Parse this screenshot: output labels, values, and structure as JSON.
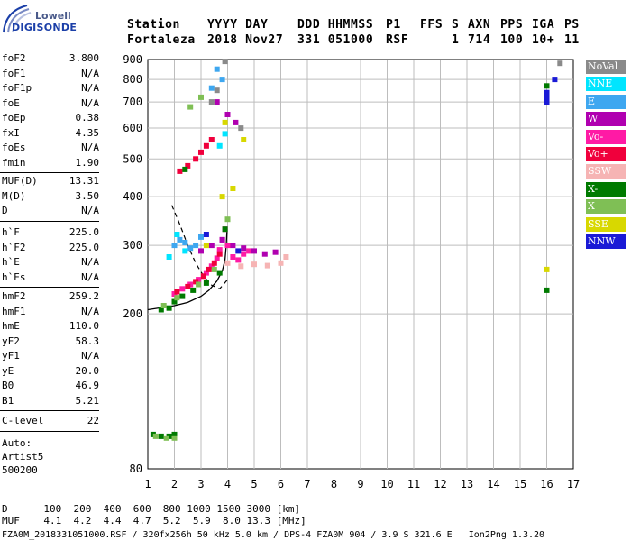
{
  "logo": {
    "line1": "Lowell",
    "line2": "DIGISONDE"
  },
  "header": {
    "labels": [
      "Station",
      "YYYY DAY",
      "DDD HHMMSS",
      "P1",
      "FFS",
      "S",
      "AXN",
      "PPS",
      "IGA",
      "PS"
    ],
    "values": [
      "Fortaleza",
      "2018 Nov27",
      "331 051000",
      "RSF",
      "",
      "1",
      "714",
      "100",
      "10+",
      "11"
    ]
  },
  "params_group1": [
    {
      "name": "foF2",
      "value": "3.800"
    },
    {
      "name": "foF1",
      "value": "N/A"
    },
    {
      "name": "foF1p",
      "value": "N/A"
    },
    {
      "name": "foE",
      "value": "N/A"
    },
    {
      "name": "foEp",
      "value": "0.38"
    },
    {
      "name": "fxI",
      "value": "4.35"
    },
    {
      "name": "foEs",
      "value": "N/A"
    },
    {
      "name": "fmin",
      "value": "1.90"
    }
  ],
  "params_group2": [
    {
      "name": "MUF(D)",
      "value": "13.31"
    },
    {
      "name": "M(D)",
      "value": "3.50"
    },
    {
      "name": "D",
      "value": "N/A"
    }
  ],
  "params_group3": [
    {
      "name": "h`F",
      "value": "225.0"
    },
    {
      "name": "h`F2",
      "value": "225.0"
    },
    {
      "name": "h`E",
      "value": "N/A"
    },
    {
      "name": "h`Es",
      "value": "N/A"
    }
  ],
  "params_group4": [
    {
      "name": "hmF2",
      "value": "259.2"
    },
    {
      "name": "hmF1",
      "value": "N/A"
    },
    {
      "name": "hmE",
      "value": "110.0"
    },
    {
      "name": "yF2",
      "value": "58.3"
    },
    {
      "name": "yF1",
      "value": "N/A"
    },
    {
      "name": "yE",
      "value": "20.0"
    },
    {
      "name": "B0",
      "value": "46.9"
    },
    {
      "name": "B1",
      "value": "5.21"
    }
  ],
  "params_group5": [
    {
      "name": "C-level",
      "value": "22"
    }
  ],
  "auto_block": [
    "Auto:",
    "Artist5",
    "500200"
  ],
  "legend": [
    {
      "label": "NoVal",
      "color": "#8a8a8a"
    },
    {
      "label": "NNE",
      "color": "#00e5ff"
    },
    {
      "label": "E",
      "color": "#3ea7f0"
    },
    {
      "label": "W",
      "color": "#b000b0"
    },
    {
      "label": "Vo-",
      "color": "#ff1aa5"
    },
    {
      "label": "Vo+",
      "color": "#f0003c"
    },
    {
      "label": "SSW",
      "color": "#f6b4b4"
    },
    {
      "label": "X-",
      "color": "#007a00"
    },
    {
      "label": "X+",
      "color": "#7fbf55"
    },
    {
      "label": "SSE",
      "color": "#d8d800"
    },
    {
      "label": "NNW",
      "color": "#1a1ad6"
    }
  ],
  "footer": {
    "line1": "D      100  200  400  600  800 1000 1500 3000 [km]",
    "line2": "MUF    4.1  4.2  4.4  4.7  5.2  5.9  8.0 13.3 [MHz]",
    "line3": "FZA0M_2018331051000.RSF / 320fx256h 50 kHz 5.0 km / DPS-4 FZA0M 904 / 3.9 S 321.6 E   Ion2Png 1.3.20"
  },
  "chart_data": {
    "type": "scatter",
    "xlabel": "",
    "ylabel": "",
    "xlim": [
      1,
      17
    ],
    "ylim": [
      80,
      900
    ],
    "x_ticks": [
      1,
      2,
      3,
      4,
      5,
      6,
      7,
      8,
      9,
      10,
      11,
      12,
      13,
      14,
      15,
      16,
      17
    ],
    "y_ticks": [
      80,
      200,
      300,
      400,
      500,
      600,
      700,
      800,
      900
    ],
    "grid": true,
    "y_scale": "log",
    "legend_placement": "right",
    "series": [
      {
        "name": "Vo-",
        "color": "#ff1aa5",
        "points": [
          [
            2.0,
            225
          ],
          [
            2.3,
            232
          ],
          [
            2.6,
            238
          ],
          [
            2.9,
            245
          ],
          [
            3.2,
            255
          ],
          [
            3.4,
            265
          ],
          [
            3.6,
            278
          ],
          [
            3.7,
            292
          ],
          [
            3.8,
            310
          ],
          [
            3.9,
            330
          ],
          [
            4.0,
            300
          ],
          [
            4.2,
            280
          ],
          [
            4.4,
            275
          ],
          [
            4.6,
            285
          ],
          [
            4.8,
            290
          ]
        ]
      },
      {
        "name": "Vo+",
        "color": "#f0003c",
        "points": [
          [
            2.1,
            228
          ],
          [
            2.5,
            235
          ],
          [
            2.8,
            242
          ],
          [
            3.1,
            250
          ],
          [
            3.3,
            260
          ],
          [
            3.5,
            270
          ],
          [
            3.7,
            285
          ],
          [
            2.2,
            465
          ],
          [
            2.5,
            480
          ],
          [
            2.8,
            500
          ],
          [
            3.0,
            520
          ],
          [
            3.2,
            540
          ],
          [
            3.4,
            560
          ]
        ]
      },
      {
        "name": "W",
        "color": "#b000b0",
        "points": [
          [
            3.0,
            290
          ],
          [
            3.4,
            300
          ],
          [
            3.8,
            310
          ],
          [
            4.2,
            300
          ],
          [
            4.6,
            295
          ],
          [
            5.0,
            290
          ],
          [
            5.4,
            285
          ],
          [
            5.8,
            288
          ],
          [
            4.0,
            650
          ],
          [
            4.3,
            620
          ],
          [
            3.6,
            700
          ]
        ]
      },
      {
        "name": "SSW",
        "color": "#f6b4b4",
        "points": [
          [
            4.0,
            270
          ],
          [
            4.5,
            265
          ],
          [
            5.0,
            268
          ],
          [
            5.5,
            266
          ],
          [
            6.0,
            270
          ],
          [
            6.2,
            280
          ]
        ]
      },
      {
        "name": "E",
        "color": "#3ea7f0",
        "points": [
          [
            2.0,
            300
          ],
          [
            2.2,
            310
          ],
          [
            2.4,
            305
          ],
          [
            2.6,
            295
          ],
          [
            2.8,
            300
          ],
          [
            3.0,
            315
          ],
          [
            3.6,
            850
          ],
          [
            3.8,
            800
          ],
          [
            3.4,
            760
          ]
        ]
      },
      {
        "name": "NNE",
        "color": "#00e5ff",
        "points": [
          [
            1.8,
            280
          ],
          [
            2.1,
            320
          ],
          [
            2.4,
            290
          ],
          [
            3.9,
            580
          ],
          [
            3.7,
            540
          ]
        ]
      },
      {
        "name": "X-",
        "color": "#007a00",
        "points": [
          [
            1.5,
            205
          ],
          [
            1.8,
            207
          ],
          [
            2.0,
            215
          ],
          [
            2.3,
            222
          ],
          [
            2.7,
            230
          ],
          [
            3.2,
            240
          ],
          [
            3.7,
            255
          ],
          [
            3.9,
            330
          ],
          [
            1.2,
            98
          ],
          [
            1.5,
            97
          ],
          [
            1.8,
            97
          ],
          [
            2.0,
            98
          ],
          [
            2.4,
            470
          ],
          [
            16.0,
            230
          ],
          [
            16.0,
            770
          ]
        ]
      },
      {
        "name": "X+",
        "color": "#7fbf55",
        "points": [
          [
            1.6,
            210
          ],
          [
            2.1,
            220
          ],
          [
            2.9,
            238
          ],
          [
            3.5,
            260
          ],
          [
            4.0,
            350
          ],
          [
            1.3,
            97
          ],
          [
            1.7,
            96
          ],
          [
            2.0,
            96
          ],
          [
            2.6,
            680
          ],
          [
            3.0,
            720
          ]
        ]
      },
      {
        "name": "SSE",
        "color": "#d8d800",
        "points": [
          [
            3.2,
            300
          ],
          [
            3.8,
            400
          ],
          [
            4.2,
            420
          ],
          [
            4.6,
            560
          ],
          [
            3.9,
            620
          ],
          [
            16.0,
            260
          ]
        ]
      },
      {
        "name": "NNW",
        "color": "#1a1ad6",
        "points": [
          [
            3.2,
            320
          ],
          [
            4.4,
            290
          ],
          [
            16.0,
            700
          ],
          [
            16.0,
            720
          ],
          [
            16.0,
            740
          ],
          [
            16.3,
            800
          ]
        ]
      },
      {
        "name": "NoVal",
        "color": "#8a8a8a",
        "points": [
          [
            3.4,
            700
          ],
          [
            3.6,
            750
          ],
          [
            3.9,
            890
          ],
          [
            4.5,
            600
          ],
          [
            16.5,
            880
          ]
        ]
      }
    ],
    "trace_curves": {
      "solid": [
        [
          1.0,
          205
        ],
        [
          2.0,
          210
        ],
        [
          2.5,
          214
        ],
        [
          3.0,
          222
        ],
        [
          3.3,
          230
        ],
        [
          3.6,
          243
        ],
        [
          3.8,
          258
        ],
        [
          3.9,
          275
        ],
        [
          3.95,
          300
        ],
        [
          3.98,
          330
        ]
      ],
      "dashed": [
        [
          1.9,
          380
        ],
        [
          2.2,
          340
        ],
        [
          2.5,
          300
        ],
        [
          2.8,
          270
        ],
        [
          3.1,
          250
        ],
        [
          3.4,
          237
        ],
        [
          3.7,
          232
        ],
        [
          4.0,
          245
        ]
      ]
    }
  }
}
